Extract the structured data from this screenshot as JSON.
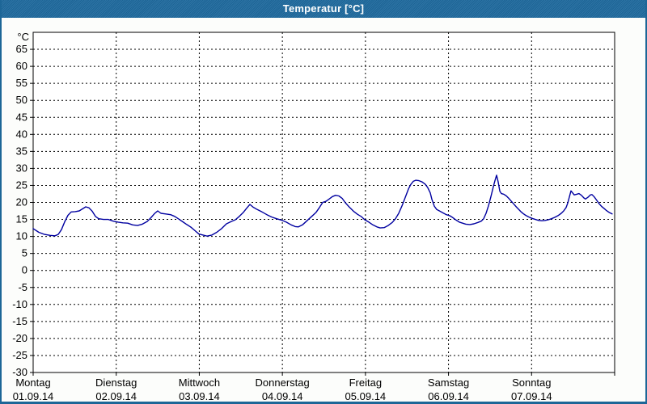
{
  "window": {
    "title": "Temperatur [°C]"
  },
  "colors": {
    "titlebar": "#1E6A9E",
    "border": "#1D6697",
    "background": "#FCFDFB",
    "plot_background": "#FFFFFF",
    "line": "#0000A0",
    "grid": "#000000",
    "text": "#000000"
  },
  "chart_data": {
    "type": "line",
    "title": "Temperatur [°C]",
    "ylabel": "°C",
    "ylim": [
      -30,
      70
    ],
    "y_tick_min": -30,
    "y_tick_max": 65,
    "y_tick_step": 5,
    "grid": "dashed",
    "legend_position": "none",
    "x_axis": {
      "unit": "day",
      "days": [
        {
          "name": "Montag",
          "date": "01.09.14"
        },
        {
          "name": "Dienstag",
          "date": "02.09.14"
        },
        {
          "name": "Mittwoch",
          "date": "03.09.14"
        },
        {
          "name": "Donnerstag",
          "date": "04.09.14"
        },
        {
          "name": "Freitag",
          "date": "05.09.14"
        },
        {
          "name": "Samstag",
          "date": "06.09.14"
        },
        {
          "name": "Sonntag",
          "date": "07.09.14"
        }
      ]
    },
    "series": [
      {
        "name": "Temperatur",
        "color": "#0000A0",
        "points_day_temp": [
          [
            0,
            12.3
          ],
          [
            0.068,
            11.2
          ],
          [
            0.136,
            10.6
          ],
          [
            0.204,
            10.3
          ],
          [
            0.263,
            10.2
          ],
          [
            0.302,
            10.6
          ],
          [
            0.341,
            12
          ],
          [
            0.38,
            14.3
          ],
          [
            0.419,
            16.2
          ],
          [
            0.458,
            17.2
          ],
          [
            0.506,
            17.3
          ],
          [
            0.555,
            17.5
          ],
          [
            0.594,
            18.1
          ],
          [
            0.633,
            18.7
          ],
          [
            0.672,
            18.4
          ],
          [
            0.711,
            17.4
          ],
          [
            0.75,
            15.9
          ],
          [
            0.789,
            15.2
          ],
          [
            0.847,
            15
          ],
          [
            0.905,
            15
          ],
          [
            0.964,
            14.5
          ],
          [
            1.022,
            14.2
          ],
          [
            1.081,
            14
          ],
          [
            1.139,
            13.9
          ],
          [
            1.197,
            13.4
          ],
          [
            1.256,
            13.2
          ],
          [
            1.314,
            13.6
          ],
          [
            1.373,
            14.4
          ],
          [
            1.421,
            15.6
          ],
          [
            1.46,
            16.7
          ],
          [
            1.499,
            17.5
          ],
          [
            1.538,
            16.8
          ],
          [
            1.597,
            16.6
          ],
          [
            1.655,
            16.4
          ],
          [
            1.704,
            15.9
          ],
          [
            1.752,
            15.1
          ],
          [
            1.801,
            14.3
          ],
          [
            1.85,
            13.5
          ],
          [
            1.899,
            12.7
          ],
          [
            1.947,
            11.7
          ],
          [
            1.996,
            10.7
          ],
          [
            2.045,
            10.4
          ],
          [
            2.093,
            10.1
          ],
          [
            2.152,
            10.4
          ],
          [
            2.21,
            11.2
          ],
          [
            2.268,
            12.3
          ],
          [
            2.327,
            13.7
          ],
          [
            2.385,
            14.4
          ],
          [
            2.434,
            14.9
          ],
          [
            2.482,
            15.9
          ],
          [
            2.531,
            17.1
          ],
          [
            2.57,
            18.3
          ],
          [
            2.609,
            19.4
          ],
          [
            2.648,
            18.6
          ],
          [
            2.697,
            17.9
          ],
          [
            2.755,
            17.2
          ],
          [
            2.814,
            16.4
          ],
          [
            2.872,
            15.7
          ],
          [
            2.93,
            15.2
          ],
          [
            2.989,
            14.8
          ],
          [
            3.047,
            14.2
          ],
          [
            3.106,
            13.4
          ],
          [
            3.154,
            12.9
          ],
          [
            3.193,
            12.8
          ],
          [
            3.242,
            13.4
          ],
          [
            3.3,
            14.7
          ],
          [
            3.359,
            16
          ],
          [
            3.407,
            17.1
          ],
          [
            3.446,
            18.5
          ],
          [
            3.485,
            20
          ],
          [
            3.524,
            20.3
          ],
          [
            3.563,
            21
          ],
          [
            3.602,
            21.7
          ],
          [
            3.641,
            22.1
          ],
          [
            3.68,
            21.9
          ],
          [
            3.719,
            21.2
          ],
          [
            3.758,
            19.9
          ],
          [
            3.807,
            18.6
          ],
          [
            3.856,
            17.4
          ],
          [
            3.904,
            16.5
          ],
          [
            3.953,
            15.8
          ],
          [
            3.992,
            14.9
          ],
          [
            4.041,
            14.2
          ],
          [
            4.089,
            13.4
          ],
          [
            4.138,
            12.8
          ],
          [
            4.177,
            12.5
          ],
          [
            4.225,
            12.6
          ],
          [
            4.274,
            13.2
          ],
          [
            4.323,
            14.1
          ],
          [
            4.362,
            15.2
          ],
          [
            4.401,
            16.8
          ],
          [
            4.44,
            19
          ],
          [
            4.479,
            21.5
          ],
          [
            4.518,
            24
          ],
          [
            4.547,
            25.3
          ],
          [
            4.576,
            26.2
          ],
          [
            4.605,
            26.5
          ],
          [
            4.644,
            26.4
          ],
          [
            4.683,
            26
          ],
          [
            4.722,
            25.3
          ],
          [
            4.751,
            24.3
          ],
          [
            4.78,
            22.8
          ],
          [
            4.8,
            20.9
          ],
          [
            4.829,
            18.9
          ],
          [
            4.858,
            17.9
          ],
          [
            4.897,
            17.4
          ],
          [
            4.936,
            16.9
          ],
          [
            4.975,
            16.4
          ],
          [
            5.014,
            16.1
          ],
          [
            5.053,
            15.5
          ],
          [
            5.092,
            14.8
          ],
          [
            5.131,
            14.2
          ],
          [
            5.17,
            13.9
          ],
          [
            5.208,
            13.6
          ],
          [
            5.257,
            13.5
          ],
          [
            5.306,
            13.7
          ],
          [
            5.355,
            14.1
          ],
          [
            5.394,
            14.5
          ],
          [
            5.423,
            15.2
          ],
          [
            5.452,
            16.8
          ],
          [
            5.481,
            19
          ],
          [
            5.511,
            21.8
          ],
          [
            5.54,
            24.6
          ],
          [
            5.559,
            26.4
          ],
          [
            5.579,
            28
          ],
          [
            5.598,
            26
          ],
          [
            5.618,
            23.3
          ],
          [
            5.637,
            22.6
          ],
          [
            5.666,
            22.4
          ],
          [
            5.696,
            21.9
          ],
          [
            5.725,
            21.2
          ],
          [
            5.754,
            20.4
          ],
          [
            5.783,
            19.6
          ],
          [
            5.812,
            18.8
          ],
          [
            5.842,
            18
          ],
          [
            5.871,
            17.3
          ],
          [
            5.9,
            16.7
          ],
          [
            5.929,
            16.2
          ],
          [
            5.968,
            15.7
          ],
          [
            6.007,
            15.3
          ],
          [
            6.046,
            15
          ],
          [
            6.085,
            14.7
          ],
          [
            6.124,
            14.6
          ],
          [
            6.163,
            14.7
          ],
          [
            6.202,
            14.9
          ],
          [
            6.24,
            15.2
          ],
          [
            6.279,
            15.6
          ],
          [
            6.318,
            16.1
          ],
          [
            6.357,
            16.8
          ],
          [
            6.387,
            17.5
          ],
          [
            6.416,
            18.5
          ],
          [
            6.435,
            19.8
          ],
          [
            6.455,
            21.6
          ],
          [
            6.474,
            23.4
          ],
          [
            6.494,
            22.8
          ],
          [
            6.513,
            22.2
          ],
          [
            6.542,
            22.4
          ],
          [
            6.571,
            22.6
          ],
          [
            6.6,
            22.1
          ],
          [
            6.63,
            21.3
          ],
          [
            6.649,
            21
          ],
          [
            6.678,
            21.5
          ],
          [
            6.708,
            22.2
          ],
          [
            6.727,
            22.3
          ],
          [
            6.756,
            21.6
          ],
          [
            6.785,
            20.6
          ],
          [
            6.814,
            19.6
          ],
          [
            6.844,
            18.8
          ],
          [
            6.873,
            18.2
          ],
          [
            6.902,
            17.6
          ],
          [
            6.931,
            17.1
          ],
          [
            6.97,
            16.6
          ]
        ]
      }
    ]
  }
}
